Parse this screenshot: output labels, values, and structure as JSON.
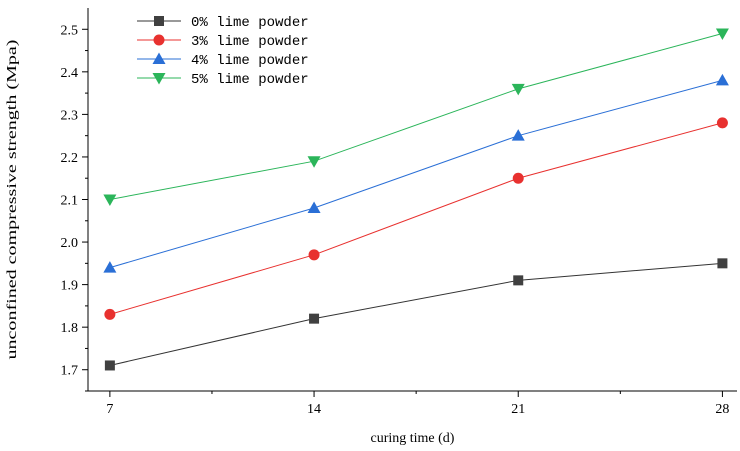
{
  "chart_data": {
    "type": "line",
    "x": [
      7,
      14,
      21,
      28
    ],
    "xlabel": "curing time (d)",
    "ylabel": "unconfined compressive strength (Mpa)",
    "xlim": [
      6.25,
      28.5
    ],
    "ylim": [
      1.65,
      2.55
    ],
    "x_ticks": [
      7,
      14,
      21,
      28
    ],
    "y_ticks": [
      1.7,
      1.8,
      1.9,
      2.0,
      2.1,
      2.2,
      2.3,
      2.4,
      2.5
    ],
    "y_tick_labels": [
      "1.7",
      "1.8",
      "1.9",
      "2.0",
      "2.1",
      "2.2",
      "2.3",
      "2.4",
      "2.5"
    ],
    "grid": false,
    "legend_position": "top-left",
    "series": [
      {
        "name": "0% lime powder",
        "values": [
          1.71,
          1.82,
          1.91,
          1.95
        ],
        "color": "#404040",
        "line_color": "#333333",
        "marker": "square"
      },
      {
        "name": "3% lime powder",
        "values": [
          1.83,
          1.97,
          2.15,
          2.28
        ],
        "color": "#e8312f",
        "line_color": "#e8312f",
        "marker": "circle"
      },
      {
        "name": "4% lime powder",
        "values": [
          1.94,
          2.08,
          2.25,
          2.38
        ],
        "color": "#2a6fd6",
        "line_color": "#2a6fd6",
        "marker": "triangle-up"
      },
      {
        "name": "5% lime powder",
        "values": [
          2.1,
          2.19,
          2.36,
          2.49
        ],
        "color": "#2bb55a",
        "line_color": "#2bb55a",
        "marker": "triangle-down"
      }
    ]
  }
}
